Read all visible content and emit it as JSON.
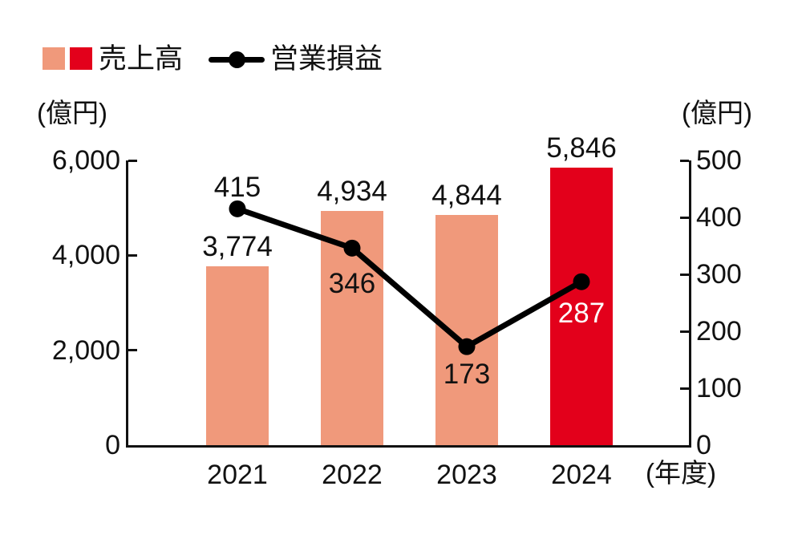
{
  "legend": {
    "bar_label": "売上高",
    "line_label": "営業損益"
  },
  "colors": {
    "salmon": "#F0997B",
    "red": "#E3001B",
    "line": "#000000",
    "axis": "#111111"
  },
  "chart_data": {
    "type": "combo",
    "categories": [
      "2021",
      "2022",
      "2023",
      "2024"
    ],
    "series": [
      {
        "name": "売上高",
        "type": "bar",
        "axis": "left",
        "values": [
          3774,
          4934,
          4844,
          5846
        ],
        "labels": [
          "3,774",
          "4,934",
          "4,844",
          "5,846"
        ],
        "colors": [
          "#F0997B",
          "#F0997B",
          "#F0997B",
          "#E3001B"
        ]
      },
      {
        "name": "営業損益",
        "type": "line",
        "axis": "right",
        "values": [
          415,
          346,
          173,
          287
        ],
        "labels": [
          "415",
          "346",
          "173",
          "287"
        ],
        "label_colors": [
          "#111111",
          "#111111",
          "#111111",
          "#ffffff"
        ],
        "color": "#000000"
      }
    ],
    "left_axis": {
      "unit": "(億円)",
      "min": 0,
      "max": 6000,
      "ticks": [
        6000,
        4000,
        2000,
        0
      ],
      "tick_labels": [
        "6,000",
        "4,000",
        "2,000",
        "0"
      ]
    },
    "right_axis": {
      "unit": "(億円)",
      "min": 0,
      "max": 500,
      "ticks": [
        500,
        400,
        300,
        200,
        100,
        0
      ],
      "tick_labels": [
        "500",
        "400",
        "300",
        "200",
        "100",
        "0"
      ]
    },
    "x_axis": {
      "unit": "(年度)"
    },
    "grid": false,
    "legend_position": "top-left"
  }
}
